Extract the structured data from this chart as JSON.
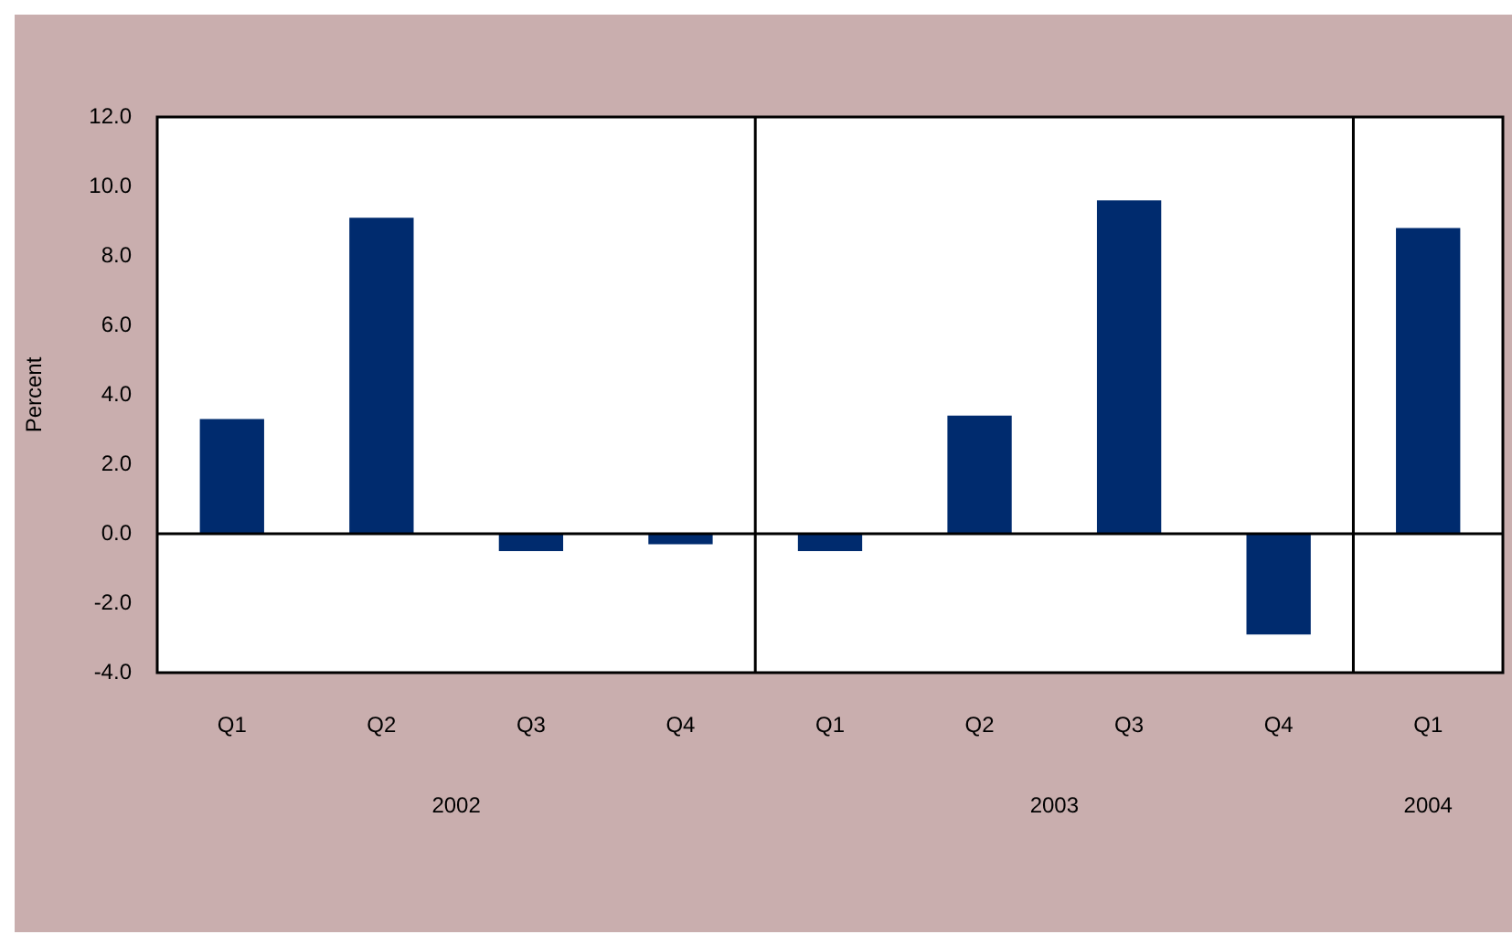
{
  "chart_data": {
    "type": "bar",
    "ylabel": "Percent",
    "categories": [
      "Q1",
      "Q2",
      "Q3",
      "Q4",
      "Q1",
      "Q2",
      "Q3",
      "Q4",
      "Q1"
    ],
    "values": [
      3.3,
      9.1,
      -0.5,
      -0.3,
      -0.5,
      3.4,
      9.6,
      -2.9,
      8.8
    ],
    "color": "#002b6e",
    "ylim": [
      -4,
      12
    ],
    "yticks": [
      {
        "value": 12,
        "label": "12.0"
      },
      {
        "value": 10,
        "label": "10.0"
      },
      {
        "value": 8,
        "label": "8.0"
      },
      {
        "value": 6,
        "label": "6.0"
      },
      {
        "value": 4,
        "label": "4.0"
      },
      {
        "value": 2,
        "label": "2.0"
      },
      {
        "value": 0,
        "label": "0.0"
      },
      {
        "value": -2,
        "label": "-2.0"
      },
      {
        "value": -4,
        "label": "-4.0"
      }
    ],
    "annotations": [
      "2002",
      "2003",
      "2004"
    ],
    "legend": false
  }
}
